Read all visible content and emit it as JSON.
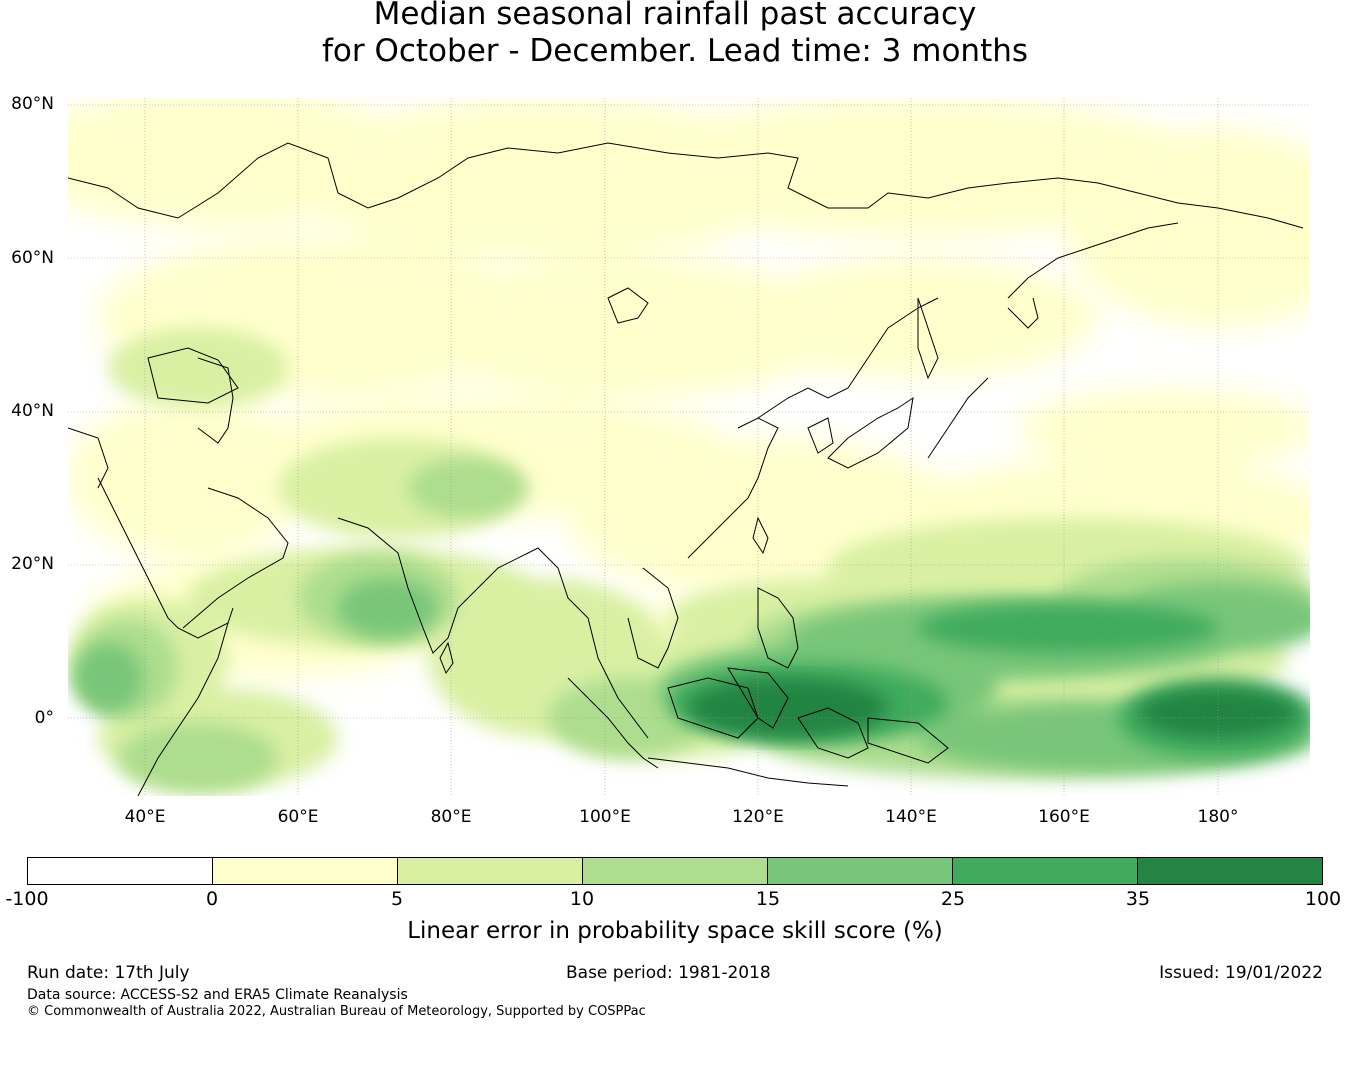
{
  "title": {
    "line1": "Median seasonal rainfall past accuracy",
    "line2": "for October - December. Lead time: 3 months"
  },
  "map": {
    "lat_labels": [
      "80°N",
      "60°N",
      "40°N",
      "20°N",
      "0°"
    ],
    "lon_labels": [
      "40°E",
      "60°E",
      "80°E",
      "100°E",
      "120°E",
      "140°E",
      "160°E",
      "180°"
    ],
    "extent": {
      "lon_min": 30,
      "lon_max": 192,
      "lat_min": -10,
      "lat_max": 81
    },
    "gridlines": true
  },
  "colorbar": {
    "ticks": [
      "-100",
      "0",
      "5",
      "10",
      "15",
      "25",
      "35",
      "100"
    ],
    "colors": [
      "#ffffff",
      "#ffffcc",
      "#d9f0a3",
      "#addd8e",
      "#78c679",
      "#41ab5d",
      "#238443"
    ],
    "label": "Linear error in probability space skill score (%)"
  },
  "footer": {
    "run_date": "Run date: 17th July",
    "base_period": "Base period: 1981-2018",
    "issued": "Issued: 19/01/2022",
    "data_source": "Data source: ACCESS-S2 and ERA5 Climate Reanalysis",
    "copyright": "© Commonwealth of Australia 2022, Australian Bureau of Meteorology, Supported by COSPPac"
  }
}
